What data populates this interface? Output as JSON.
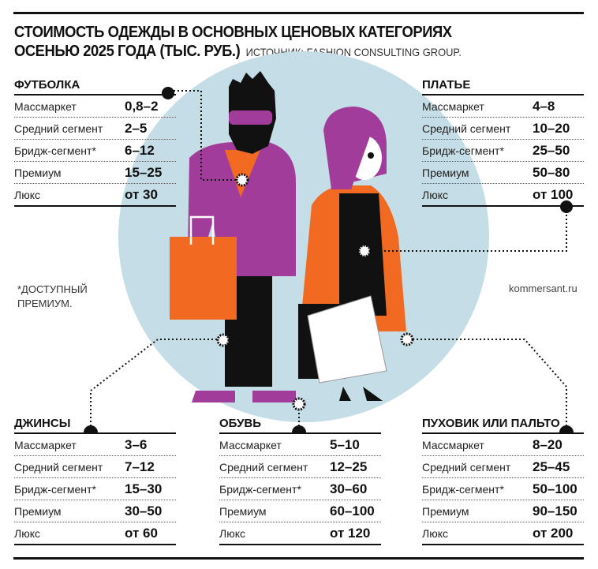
{
  "title_line1": "СТОИМОСТЬ ОДЕЖДЫ В ОСНОВНЫХ ЦЕНОВЫХ КАТЕГОРИЯХ",
  "title_line2": "ОСЕНЬЮ 2025 ГОДА (ТЫС. РУБ.)",
  "source": "ИСТОЧНИК: FASHION CONSULTING GROUP.",
  "footnote": "*ДОСТУПНЫЙ ПРЕМИУМ.",
  "credit": "kommersant.ru",
  "colors": {
    "circle": "#c5dde6",
    "purple": "#a23c9b",
    "orange": "#f26a21",
    "black": "#111111"
  },
  "tables": [
    {
      "title": "ФУТБОЛКА",
      "rows": [
        {
          "label": "Массмаркет",
          "value": "0,8–2"
        },
        {
          "label": "Средний сегмент",
          "value": "2–5"
        },
        {
          "label": "Бридж-сегмент*",
          "value": "6–12"
        },
        {
          "label": "Премиум",
          "value": "15–25"
        },
        {
          "label": "Люкс",
          "value": "от 30"
        }
      ]
    },
    {
      "title": "ПЛАТЬЕ",
      "rows": [
        {
          "label": "Массмаркет",
          "value": "4–8"
        },
        {
          "label": "Средний сегмент",
          "value": "10–20"
        },
        {
          "label": "Бридж-сегмент*",
          "value": "25–50"
        },
        {
          "label": "Премиум",
          "value": "50–80"
        },
        {
          "label": "Люкс",
          "value": "от 100"
        }
      ]
    },
    {
      "title": "ДЖИНСЫ",
      "rows": [
        {
          "label": "Массмаркет",
          "value": "3–6"
        },
        {
          "label": "Средний сегмент",
          "value": "7–12"
        },
        {
          "label": "Бридж-сегмент*",
          "value": "15–30"
        },
        {
          "label": "Премиум",
          "value": "30–50"
        },
        {
          "label": "Люкс",
          "value": "от 60"
        }
      ]
    },
    {
      "title": "ОБУВЬ",
      "rows": [
        {
          "label": "Массмаркет",
          "value": "5–10"
        },
        {
          "label": "Средний сегмент",
          "value": "12–25"
        },
        {
          "label": "Бридж-сегмент*",
          "value": "30–60"
        },
        {
          "label": "Премиум",
          "value": "60–100"
        },
        {
          "label": "Люкс",
          "value": "от 120"
        }
      ]
    },
    {
      "title": "ПУХОВИК ИЛИ ПАЛЬТО",
      "rows": [
        {
          "label": "Массмаркет",
          "value": "8–20"
        },
        {
          "label": "Средний сегмент",
          "value": "25–45"
        },
        {
          "label": "Бридж-сегмент*",
          "value": "50–100"
        },
        {
          "label": "Премиум",
          "value": "90–150"
        },
        {
          "label": "Люкс",
          "value": "от 200"
        }
      ]
    }
  ]
}
